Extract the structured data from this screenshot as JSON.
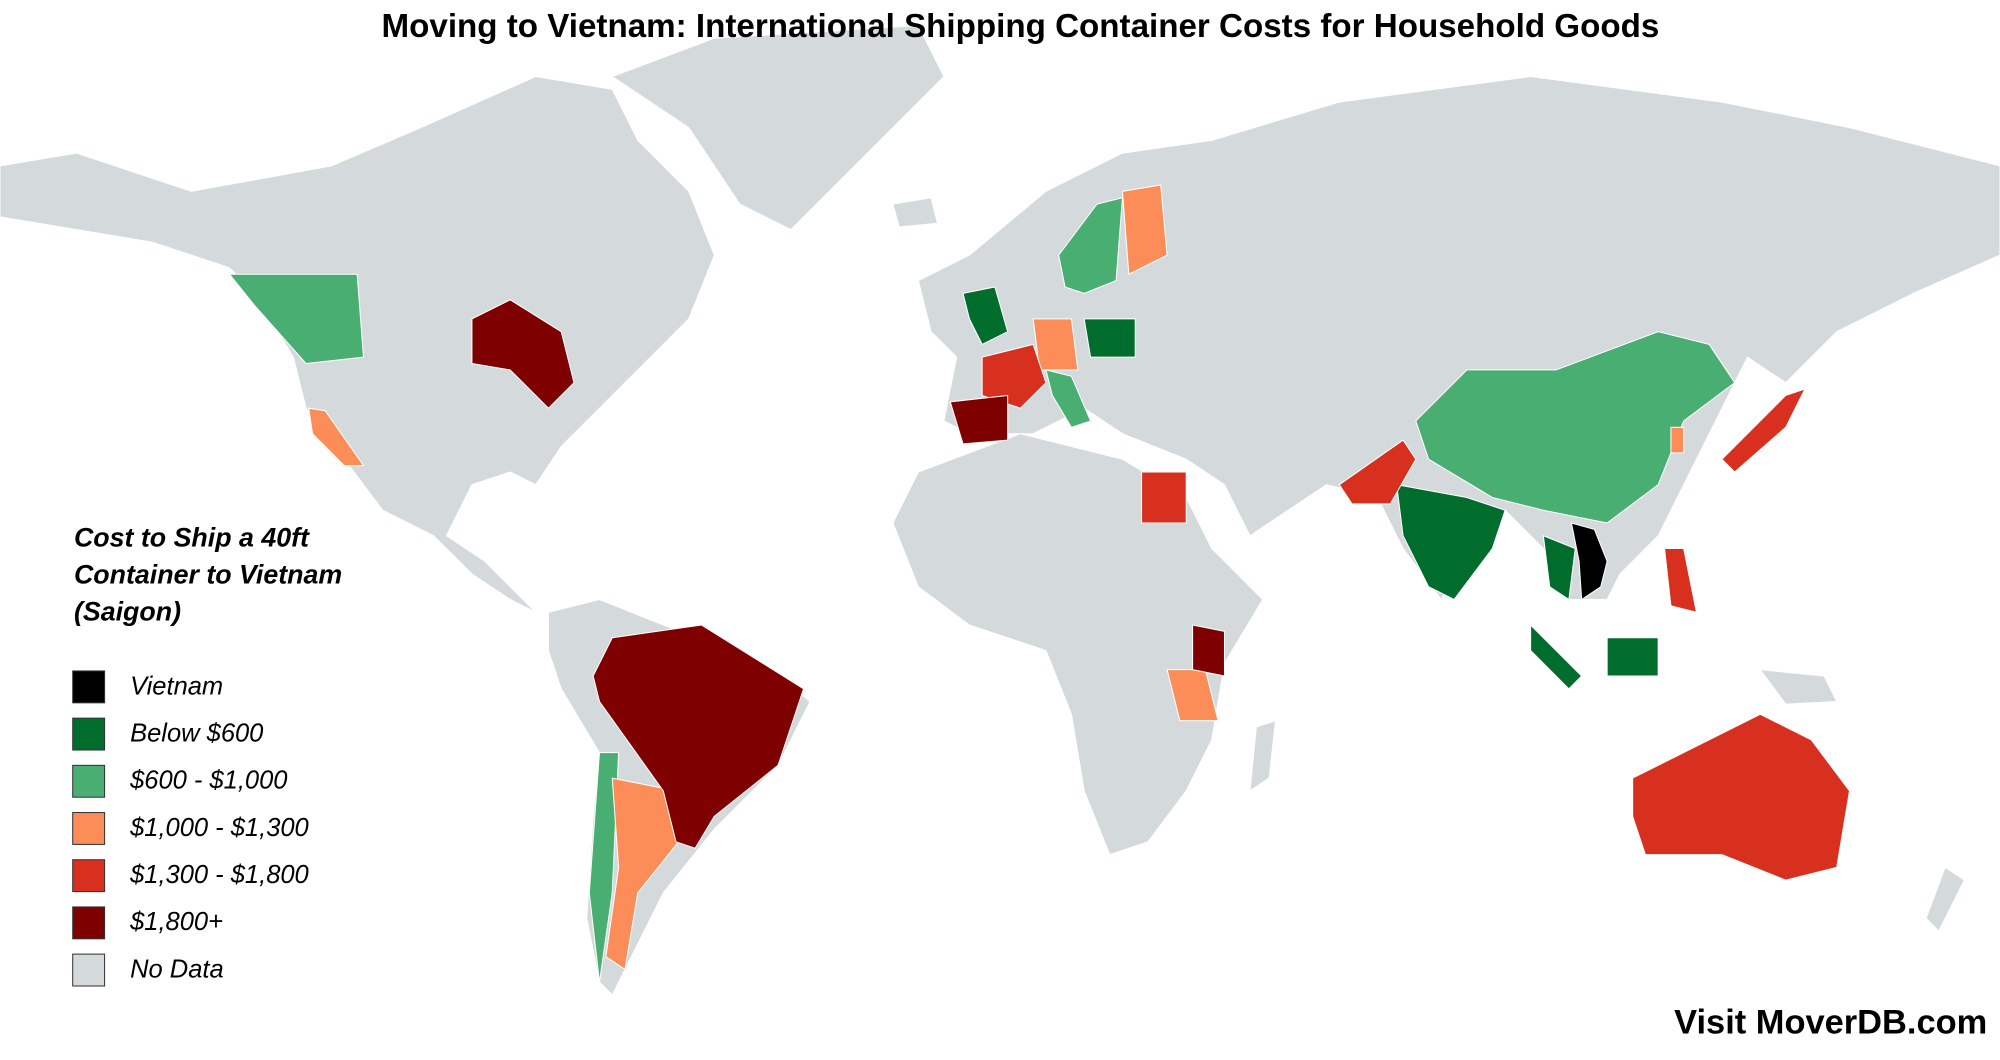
{
  "title": "Moving to Vietnam: International Shipping Container Costs for Household Goods",
  "legend": {
    "title": [
      "Cost to Ship a 40ft",
      "Container to Vietnam",
      "(Saigon)"
    ],
    "items": [
      {
        "label": "Vietnam",
        "color": "#000000"
      },
      {
        "label": "Below $600",
        "color": "#006d2c"
      },
      {
        "label": "$600 - $1,000",
        "color": "#48ae72"
      },
      {
        "label": "$1,000 - $1,300",
        "color": "#fc8d59"
      },
      {
        "label": "$1,300 - $1,800",
        "color": "#d7301f"
      },
      {
        "label": "$1,800+",
        "color": "#7f0000"
      },
      {
        "label": "No Data",
        "color": "#d4d9dc"
      }
    ]
  },
  "footer": "Visit MoverDB.com"
}
